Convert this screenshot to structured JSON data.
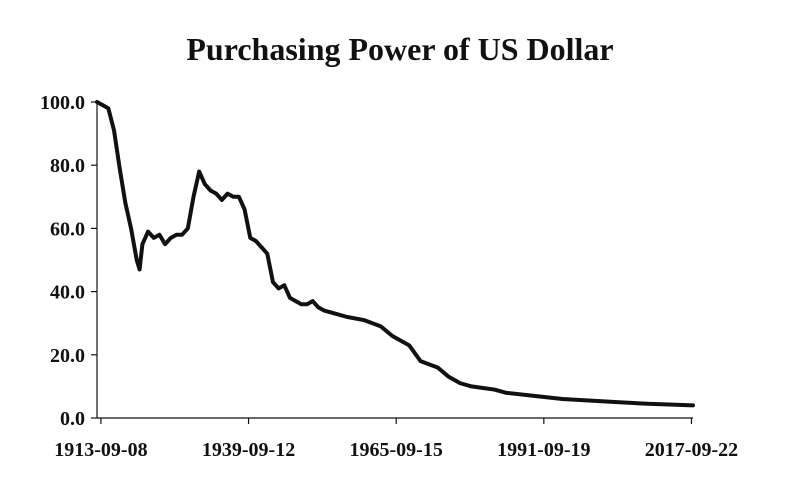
{
  "chart_data": {
    "type": "line",
    "title": "Purchasing Power of US Dollar",
    "xlabel": "",
    "ylabel": "",
    "ylim": [
      0,
      100
    ],
    "y_ticks": [
      "100.0",
      "80.0",
      "60.0",
      "40.0",
      "20.0",
      "0.0"
    ],
    "y_tick_values": [
      100,
      80,
      60,
      40,
      20,
      0
    ],
    "x_ticks": [
      "1913-09-08",
      "1939-09-12",
      "1965-09-15",
      "1991-09-19",
      "2017-09-22"
    ],
    "x_tick_values": [
      1913.69,
      1939.7,
      1965.71,
      1991.72,
      2017.73
    ],
    "xlim": [
      1913.0,
      2018.0
    ],
    "grid": false,
    "legend": "none",
    "line_color": "#111111",
    "series": [
      {
        "x": [
          1913.0,
          1914.0,
          1915.0,
          1916.0,
          1917.0,
          1918.0,
          1919.0,
          1920.0,
          1920.5,
          1921.0,
          1922.0,
          1923.0,
          1924.0,
          1925.0,
          1926.0,
          1927.0,
          1928.0,
          1929.0,
          1930.0,
          1931.0,
          1932.0,
          1933.0,
          1934.0,
          1935.0,
          1936.0,
          1937.0,
          1938.0,
          1939.0,
          1940.0,
          1941.0,
          1942.0,
          1943.0,
          1944.0,
          1945.0,
          1946.0,
          1947.0,
          1948.0,
          1949.0,
          1950.0,
          1951.0,
          1952.0,
          1953.0,
          1955.0,
          1957.0,
          1960.0,
          1963.0,
          1965.0,
          1968.0,
          1970.0,
          1973.0,
          1975.0,
          1977.0,
          1979.0,
          1981.0,
          1983.0,
          1985.0,
          1990.0,
          1995.0,
          2000.0,
          2005.0,
          2010.0,
          2015.0,
          2018.0
        ],
        "y": [
          100,
          99,
          98,
          91,
          79,
          68,
          60,
          50,
          47,
          55,
          59,
          57,
          58,
          55,
          57,
          58,
          58,
          60,
          70,
          78,
          74,
          72,
          71,
          69,
          71,
          70,
          70,
          66,
          57,
          56,
          54,
          52,
          43,
          41,
          42,
          38,
          37,
          36,
          36,
          37,
          35,
          34,
          33,
          32,
          31,
          29,
          26,
          23,
          18,
          16,
          13,
          11,
          10,
          9.5,
          9,
          8,
          7,
          6,
          5.5,
          5,
          4.5,
          4.2,
          4
        ]
      }
    ]
  }
}
